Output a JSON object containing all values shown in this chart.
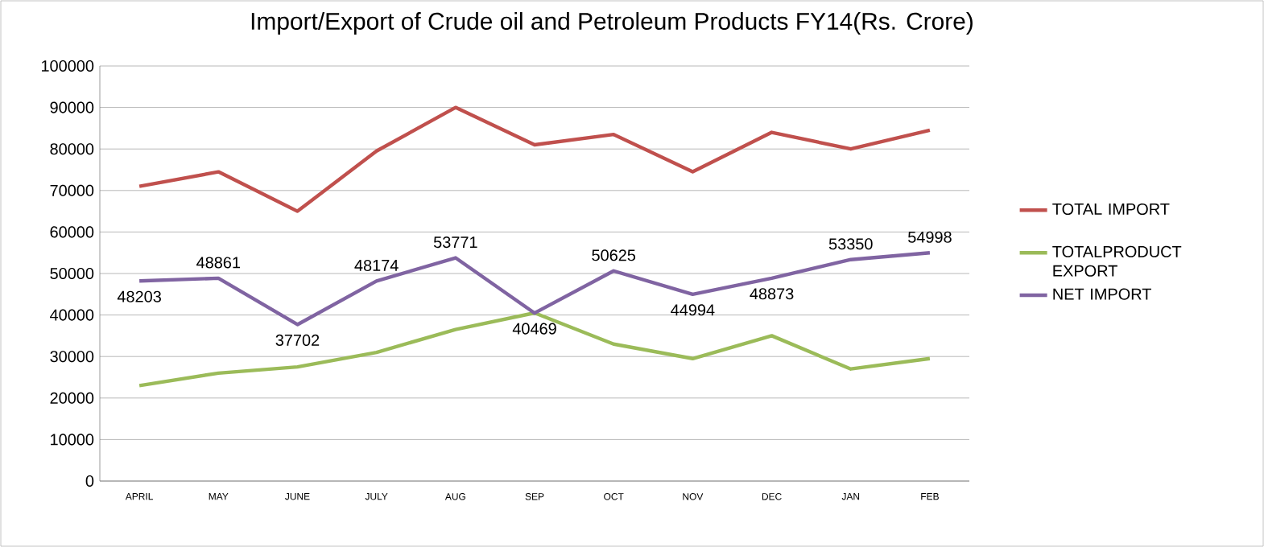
{
  "chart_data": {
    "type": "line",
    "title": "Import/Export of Crude oil and Petroleum Products FY14(Rs. Crore)",
    "categories": [
      "APRIL",
      "MAY",
      "JUNE",
      "JULY",
      "AUG",
      "SEP",
      "OCT",
      "NOV",
      "DEC",
      "JAN",
      "FEB"
    ],
    "series": [
      {
        "name": "TOTAL IMPORT",
        "color": "#c0504d",
        "values": [
          71000,
          74500,
          65000,
          79500,
          90000,
          81000,
          83500,
          74500,
          84000,
          80000,
          84500
        ]
      },
      {
        "name": "TOTALPRODUCT EXPORT",
        "color": "#9bbb59",
        "values": [
          23000,
          26000,
          27500,
          31000,
          36500,
          40500,
          33000,
          29500,
          35000,
          27000,
          29500
        ]
      },
      {
        "name": "NET IMPORT",
        "color": "#8064a2",
        "values": [
          48203,
          48861,
          37702,
          48174,
          53771,
          40469,
          50625,
          44994,
          48873,
          53350,
          54998
        ],
        "value_labels": [
          "48203",
          "48861",
          "37702",
          "48174",
          "53771",
          "40469",
          "50625",
          "44994",
          "48873",
          "53350",
          "54998"
        ]
      }
    ],
    "ylim": [
      0,
      100000
    ],
    "yticks": [
      0,
      10000,
      20000,
      30000,
      40000,
      50000,
      60000,
      70000,
      80000,
      90000,
      100000
    ],
    "grid": "y",
    "legend": "right",
    "marker": "none",
    "line_style": "solid"
  }
}
